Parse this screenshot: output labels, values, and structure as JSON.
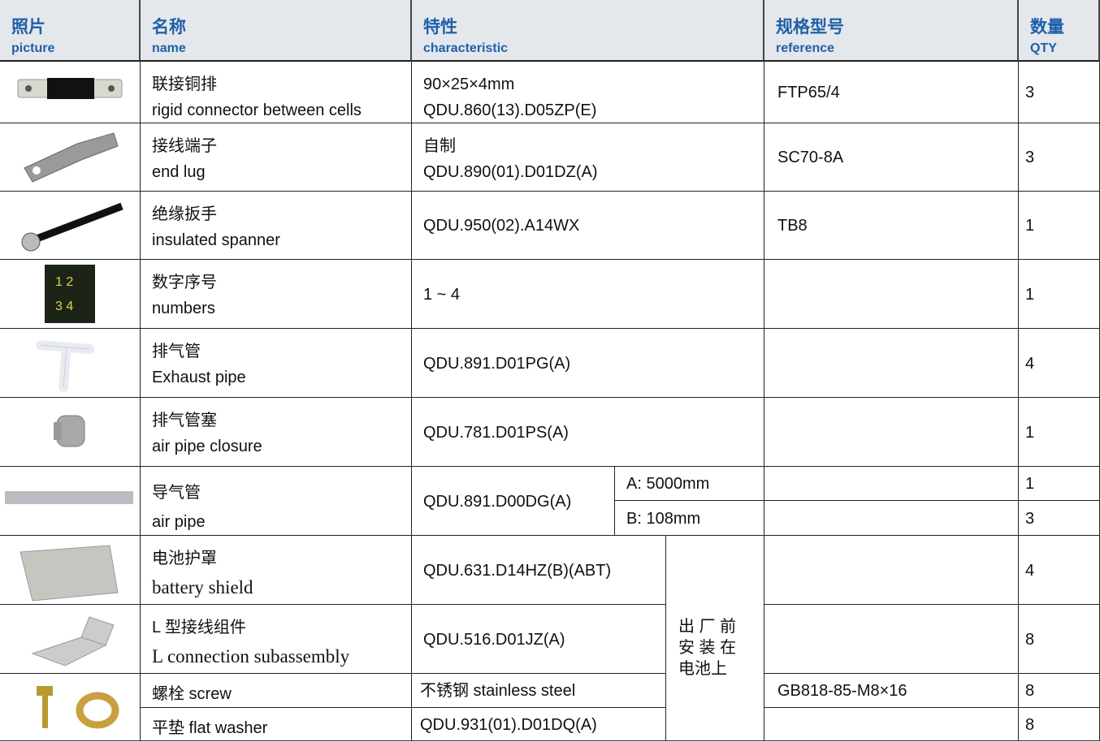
{
  "header": [
    {
      "zh": "照片",
      "en": "picture"
    },
    {
      "zh": "名称",
      "en": "name"
    },
    {
      "zh": "特性",
      "en": "characteristic"
    },
    {
      "zh": "规格型号",
      "en": "reference"
    },
    {
      "zh": "数量",
      "en": "QTY"
    }
  ],
  "rows": [
    {
      "name": [
        "联接铜排",
        "rigid connector between cells"
      ],
      "characteristic": [
        "90×25×4mm",
        "QDU.860(13).D05ZP(E)"
      ],
      "reference": "FTP65/4",
      "qty": 3
    },
    {
      "name": [
        "接线端子",
        "end lug"
      ],
      "characteristic": [
        "自制",
        "QDU.890(01).D01DZ(A)"
      ],
      "reference": "SC70-8A",
      "qty": 3
    },
    {
      "name": [
        "绝缘扳手",
        "insulated spanner"
      ],
      "characteristic": [
        "QDU.950(02).A14WX"
      ],
      "reference": "TB8",
      "qty": 1
    },
    {
      "name": [
        "数字序号",
        "numbers"
      ],
      "characteristic": [
        "1 ~ 4"
      ],
      "qty": 1
    },
    {
      "name": [
        "排气管",
        "Exhaust pipe"
      ],
      "characteristic": [
        "QDU.891.D01PG(A)"
      ],
      "qty": 4
    },
    {
      "name": [
        "排气管塞",
        "air pipe closure"
      ],
      "characteristic": [
        "QDU.781.D01PS(A)"
      ],
      "qty": 1
    },
    {
      "name": [
        "导气管",
        "air pipe"
      ],
      "characteristic": [
        "QDU.891.D00DG(A)"
      ],
      "variants": [
        {
          "length": "A: 5000mm",
          "qty": 1
        },
        {
          "length": "B: 108mm",
          "qty": 3
        }
      ]
    },
    {
      "name": [
        "电池护罩",
        "battery shield"
      ],
      "characteristic": [
        "QDU.631.D14HZ(B)(ABT)"
      ],
      "qty": 4
    },
    {
      "name": [
        "L 型接线组件",
        "L connection subassembly"
      ],
      "characteristic": [
        "QDU.516.D01JZ(A)"
      ],
      "qty": 8
    },
    {
      "parts": [
        {
          "name": "螺栓 screw",
          "characteristic": "不锈钢 stainless steel",
          "reference": "GB818-85-M8×16",
          "qty": 8
        },
        {
          "name": "平垫 flat washer",
          "characteristic": "QDU.931(01).D01DQ(A)",
          "qty": 8
        }
      ]
    }
  ],
  "factory_note": [
    "出 厂 前",
    "安 装 在",
    "电池上"
  ]
}
